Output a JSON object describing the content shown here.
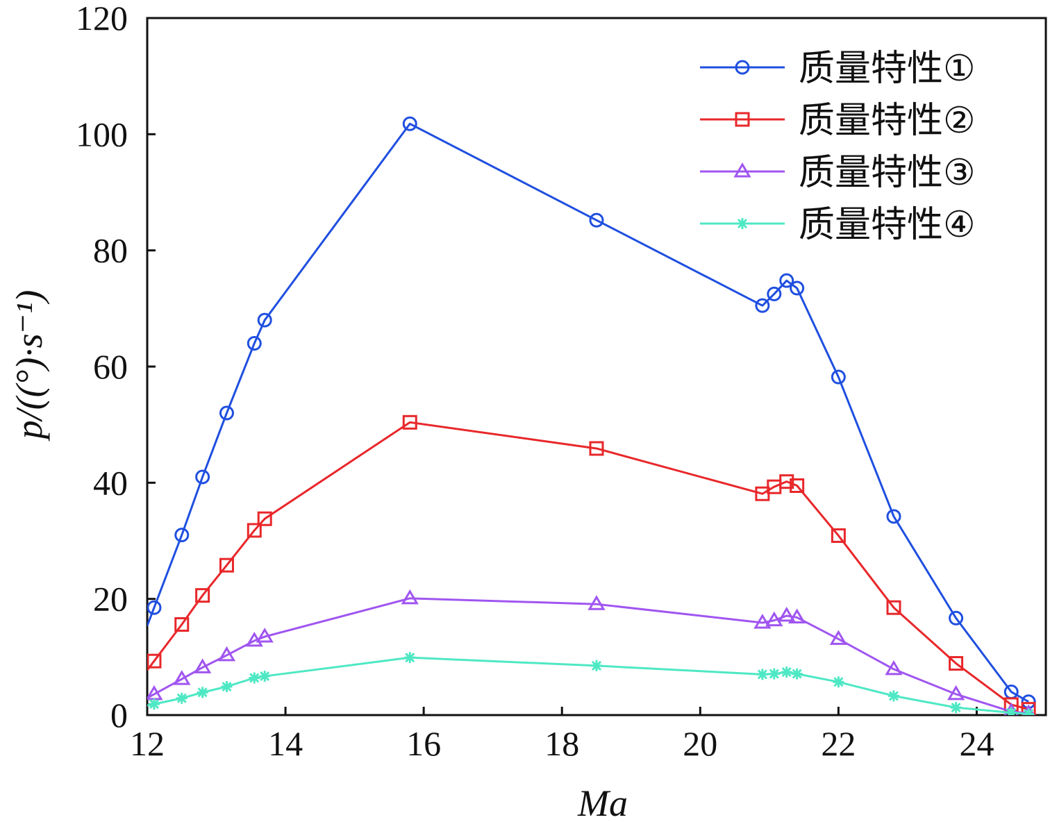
{
  "chart_data": {
    "type": "line",
    "title": "",
    "xlabel": "Ma",
    "ylabel": "p/((°)·s⁻¹)",
    "xlim": [
      12,
      25
    ],
    "ylim": [
      0,
      120
    ],
    "xticks": [
      12,
      14,
      16,
      18,
      20,
      22,
      24
    ],
    "yticks": [
      0,
      20,
      40,
      60,
      80,
      100,
      120
    ],
    "legend_position": "top-right",
    "x": [
      12.1,
      12.5,
      12.8,
      13.15,
      13.55,
      13.7,
      15.8,
      18.5,
      20.9,
      21.07,
      21.25,
      21.4,
      22.0,
      22.8,
      23.7,
      24.5,
      24.75
    ],
    "series": [
      {
        "name": "质量特性①",
        "color": "#1f4fe0",
        "marker": "circle",
        "values": [
          18.5,
          31,
          41,
          52,
          64,
          68,
          101.8,
          85.2,
          70.5,
          72.5,
          74.8,
          73.5,
          58.2,
          34.2,
          16.7,
          4,
          2.3
        ]
      },
      {
        "name": "质量特性②",
        "color": "#e8272a",
        "marker": "square",
        "values": [
          9.3,
          15.6,
          20.6,
          25.8,
          31.8,
          33.8,
          50.4,
          45.9,
          38.1,
          39.3,
          40.2,
          39.5,
          30.9,
          18.5,
          8.9,
          1.8,
          1.0
        ]
      },
      {
        "name": "质量特性③",
        "color": "#a055f0",
        "marker": "triangle",
        "values": [
          3.6,
          6.2,
          8.2,
          10.3,
          12.8,
          13.5,
          20.1,
          19.1,
          15.9,
          16.3,
          17.1,
          16.8,
          13.1,
          7.9,
          3.6,
          0.6,
          0.3
        ]
      },
      {
        "name": "质量特性④",
        "color": "#4ee8c4",
        "marker": "asterisk",
        "values": [
          1.9,
          2.9,
          3.9,
          4.9,
          6.4,
          6.7,
          9.9,
          8.5,
          7.0,
          7.1,
          7.4,
          7.1,
          5.7,
          3.3,
          1.3,
          0.4,
          0.2
        ]
      }
    ]
  }
}
